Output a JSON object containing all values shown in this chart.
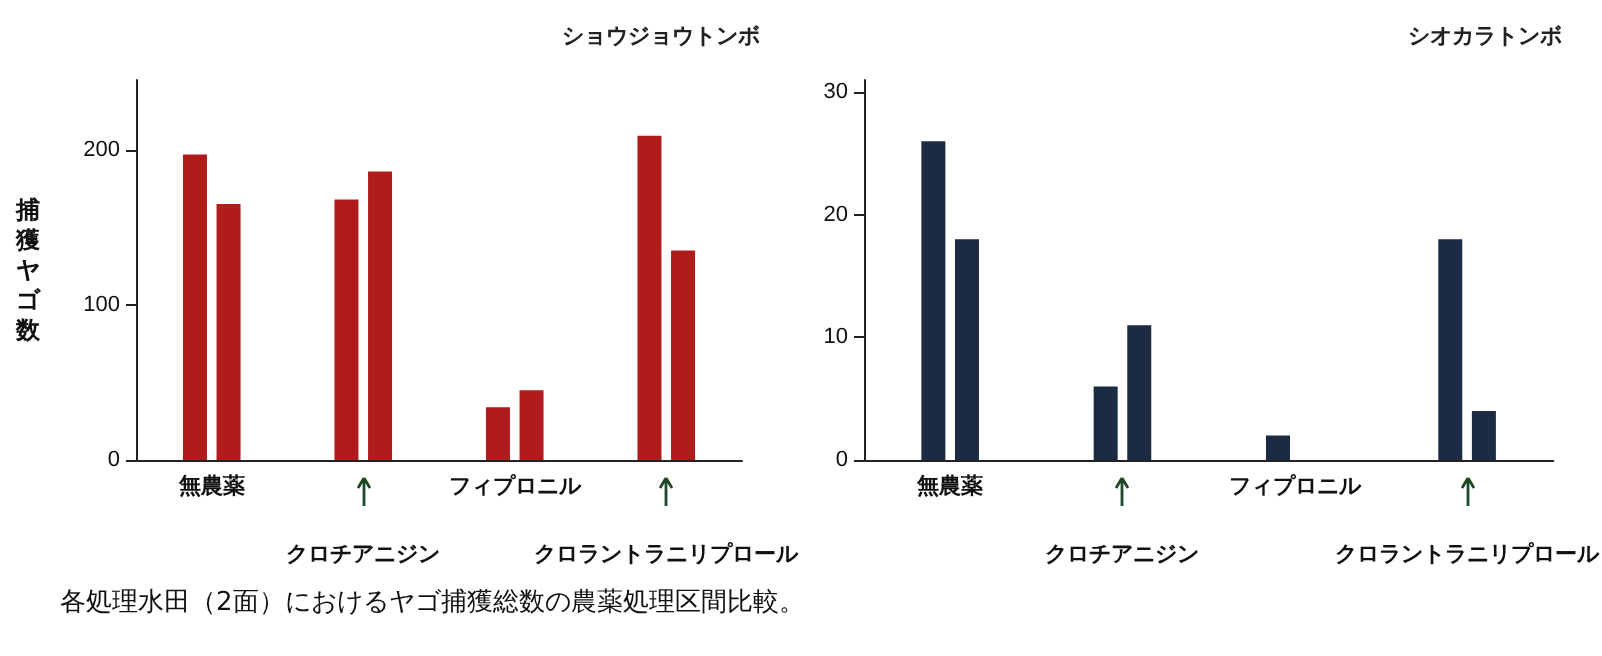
{
  "chart_data": [
    {
      "type": "bar",
      "title": "ショウジョウトンボ",
      "ylabel": "捕獲ヤゴ数",
      "categories": [
        "無農薬",
        "クロチアニジン",
        "フィプロニル",
        "クロラントラニリプロール"
      ],
      "series": [
        {
          "color": "#b01c1c",
          "values": [
            197,
            168,
            34,
            209
          ]
        },
        {
          "color": "#b01c1c",
          "values": [
            165,
            186,
            45,
            135
          ]
        }
      ],
      "ylim": [
        0,
        245
      ],
      "yticks": [
        0,
        100,
        200
      ],
      "grid": false,
      "annotations": [
        "各処理水田（2面）におけるヤゴ捕獲総数の農薬処理区間比較。"
      ]
    },
    {
      "type": "bar",
      "title": "シオカラトンボ",
      "categories": [
        "無農薬",
        "クロチアニジン",
        "フィプロニル",
        "クロラントラニリプロール"
      ],
      "series": [
        {
          "color": "#1c2a44",
          "values": [
            26,
            6,
            2,
            18
          ]
        },
        {
          "color": "#1c2a44",
          "values": [
            18,
            11,
            0,
            4
          ]
        }
      ],
      "ylim": [
        0,
        31
      ],
      "yticks": [
        0,
        10,
        20,
        30
      ],
      "grid": false
    }
  ]
}
